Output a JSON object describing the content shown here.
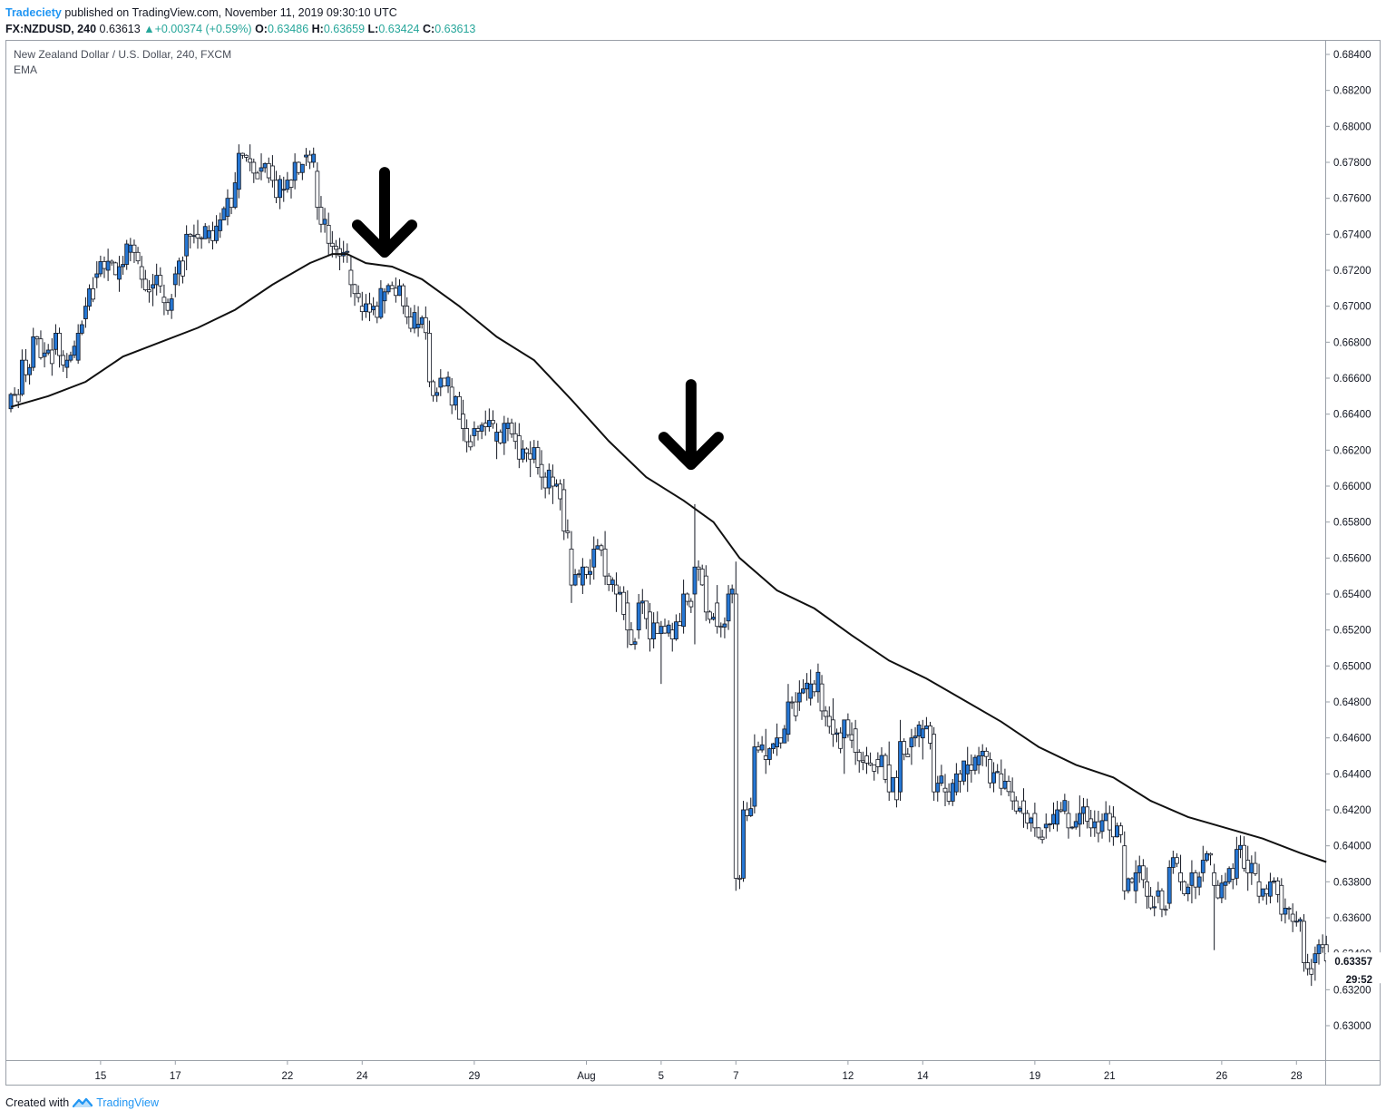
{
  "header": {
    "author": "Tradeciety",
    "published_text": "published on TradingView.com, November 11, 2019 09:30:10 UTC",
    "symbol": "FX:NZDUSD, 240",
    "last": "0.63613",
    "change": "+0.00374 (+0.59%)",
    "o_label": "O:",
    "o_value": "0.63486",
    "h_label": "H:",
    "h_value": "0.63659",
    "l_label": "L:",
    "l_value": "0.63424",
    "c_label": "C:",
    "c_value": "0.63613"
  },
  "legend": {
    "title": "New Zealand Dollar / U.S. Dollar, 240, FXCM",
    "indicator": "EMA"
  },
  "footer": {
    "created_with": "Created with",
    "brand": "TradingView"
  },
  "price_tag": {
    "price": "0.63357",
    "countdown": "29:52"
  },
  "colors": {
    "up_body": "#2677d4",
    "down_body": "#ffffff",
    "wick": "#131722",
    "ema": "#111111",
    "arrow": "#000000",
    "author": "#2196f3",
    "change_up": "#26a69a"
  },
  "icons": [
    "up-triangle-icon",
    "tradingview-logo-icon",
    "down-arrow-icon"
  ],
  "chart_data": {
    "type": "candlestick",
    "title": "New Zealand Dollar / U.S. Dollar, 240, FXCM",
    "y_axis_position": "right",
    "ylim": [
      0.6284,
      0.6851
    ],
    "y_ticks": [
      0.684,
      0.682,
      0.68,
      0.678,
      0.676,
      0.674,
      0.672,
      0.67,
      0.668,
      0.666,
      0.664,
      0.662,
      0.66,
      0.658,
      0.656,
      0.654,
      0.652,
      0.65,
      0.648,
      0.646,
      0.644,
      0.642,
      0.64,
      0.638,
      0.636,
      0.634,
      0.632,
      0.63
    ],
    "y_tick_labels": [
      "0.68400",
      "0.68200",
      "0.68000",
      "0.67800",
      "0.67600",
      "0.67400",
      "0.67200",
      "0.67000",
      "0.66800",
      "0.66600",
      "0.66400",
      "0.66200",
      "0.66000",
      "0.65800",
      "0.65600",
      "0.65400",
      "0.65200",
      "0.65000",
      "0.64800",
      "0.64600",
      "0.64400",
      "0.64200",
      "0.64000",
      "0.63800",
      "0.63600",
      "0.63400",
      "0.63200",
      "0.63000"
    ],
    "x_ticks": [
      {
        "label": "15",
        "index": 24
      },
      {
        "label": "17",
        "index": 44
      },
      {
        "label": "22",
        "index": 74
      },
      {
        "label": "24",
        "index": 94
      },
      {
        "label": "29",
        "index": 124
      },
      {
        "label": "Aug",
        "index": 154
      },
      {
        "label": "5",
        "index": 174
      },
      {
        "label": "7",
        "index": 194
      },
      {
        "label": "12",
        "index": 224
      },
      {
        "label": "14",
        "index": 244
      },
      {
        "label": "19",
        "index": 274
      },
      {
        "label": "21",
        "index": 294
      },
      {
        "label": "26",
        "index": 324
      },
      {
        "label": "28",
        "index": 344
      }
    ],
    "anchors": [
      [
        0,
        0.6643,
        0.6652,
        0.6641,
        0.6651
      ],
      [
        3,
        0.6651,
        0.6676,
        0.665,
        0.667
      ],
      [
        6,
        0.6666,
        0.6688,
        0.6664,
        0.6683
      ],
      [
        9,
        0.6672,
        0.668,
        0.6666,
        0.6674
      ],
      [
        12,
        0.6676,
        0.669,
        0.6673,
        0.6685
      ],
      [
        15,
        0.6666,
        0.6674,
        0.666,
        0.667
      ],
      [
        18,
        0.667,
        0.669,
        0.6668,
        0.6685
      ],
      [
        20,
        0.6693,
        0.6705,
        0.6688,
        0.67
      ],
      [
        23,
        0.6716,
        0.6725,
        0.671,
        0.6718
      ],
      [
        26,
        0.672,
        0.6732,
        0.6714,
        0.6725
      ],
      [
        29,
        0.6715,
        0.6728,
        0.6708,
        0.6722
      ],
      [
        32,
        0.673,
        0.6738,
        0.6725,
        0.6734
      ],
      [
        35,
        0.6722,
        0.6728,
        0.671,
        0.6715
      ],
      [
        38,
        0.671,
        0.6718,
        0.67,
        0.6712
      ],
      [
        41,
        0.6705,
        0.6712,
        0.6695,
        0.6702
      ],
      [
        44,
        0.6712,
        0.6722,
        0.6705,
        0.6718
      ],
      [
        47,
        0.6728,
        0.6745,
        0.672,
        0.674
      ],
      [
        50,
        0.674,
        0.6748,
        0.6732,
        0.6738
      ],
      [
        53,
        0.6738,
        0.6745,
        0.6735,
        0.6742
      ],
      [
        56,
        0.6742,
        0.6752,
        0.6738,
        0.6748
      ],
      [
        58,
        0.675,
        0.6765,
        0.6745,
        0.676
      ],
      [
        61,
        0.6765,
        0.679,
        0.676,
        0.6785
      ],
      [
        64,
        0.6782,
        0.679,
        0.6775,
        0.678
      ],
      [
        67,
        0.6775,
        0.6785,
        0.677,
        0.6777
      ],
      [
        70,
        0.6778,
        0.6784,
        0.6766,
        0.677
      ],
      [
        73,
        0.6765,
        0.6772,
        0.6758,
        0.6765
      ],
      [
        76,
        0.677,
        0.6785,
        0.6765,
        0.678
      ],
      [
        79,
        0.6783,
        0.6788,
        0.6778,
        0.6784
      ],
      [
        82,
        0.6775,
        0.678,
        0.6748,
        0.6755
      ],
      [
        85,
        0.6745,
        0.6752,
        0.6728,
        0.6735
      ],
      [
        88,
        0.6732,
        0.6738,
        0.672,
        0.6728
      ],
      [
        91,
        0.672,
        0.6728,
        0.6705,
        0.6712
      ],
      [
        94,
        0.67,
        0.6708,
        0.6692,
        0.6697
      ],
      [
        97,
        0.6698,
        0.6705,
        0.6695,
        0.67
      ],
      [
        100,
        0.6703,
        0.671,
        0.6696,
        0.6708
      ],
      [
        103,
        0.671,
        0.6716,
        0.6702,
        0.6706
      ],
      [
        106,
        0.67,
        0.6705,
        0.669,
        0.6694
      ],
      [
        109,
        0.6688,
        0.67,
        0.6683,
        0.669
      ],
      [
        112,
        0.6685,
        0.6692,
        0.6655,
        0.6658
      ],
      [
        115,
        0.6655,
        0.6665,
        0.665,
        0.666
      ],
      [
        118,
        0.6655,
        0.666,
        0.664,
        0.6645
      ],
      [
        121,
        0.664,
        0.6648,
        0.6625,
        0.6632
      ],
      [
        124,
        0.6628,
        0.6636,
        0.6622,
        0.6632
      ],
      [
        127,
        0.6635,
        0.6642,
        0.6628,
        0.6633
      ],
      [
        130,
        0.6625,
        0.6635,
        0.6615,
        0.663
      ],
      [
        133,
        0.6632,
        0.6638,
        0.6625,
        0.6635
      ],
      [
        136,
        0.6628,
        0.6635,
        0.661,
        0.6615
      ],
      [
        139,
        0.6618,
        0.6625,
        0.6605,
        0.6615
      ],
      [
        142,
        0.6612,
        0.662,
        0.6598,
        0.6605
      ],
      [
        145,
        0.6605,
        0.6612,
        0.659,
        0.66
      ],
      [
        148,
        0.6598,
        0.6604,
        0.657,
        0.6575
      ],
      [
        150,
        0.6565,
        0.6575,
        0.6535,
        0.6545
      ],
      [
        153,
        0.6545,
        0.656,
        0.654,
        0.6555
      ],
      [
        156,
        0.6555,
        0.6572,
        0.6548,
        0.6565
      ],
      [
        159,
        0.6565,
        0.6575,
        0.6545,
        0.655
      ],
      [
        162,
        0.6545,
        0.6552,
        0.653,
        0.654
      ],
      [
        165,
        0.6535,
        0.6542,
        0.651,
        0.652
      ],
      [
        168,
        0.652,
        0.654,
        0.6515,
        0.6535
      ],
      [
        171,
        0.653,
        0.6535,
        0.6508,
        0.6515
      ],
      [
        174,
        0.6518,
        0.6525,
        0.649,
        0.6522
      ],
      [
        177,
        0.652,
        0.6524,
        0.6508,
        0.6515
      ],
      [
        180,
        0.6522,
        0.6548,
        0.6518,
        0.654
      ],
      [
        183,
        0.654,
        0.659,
        0.6512,
        0.6555
      ],
      [
        186,
        0.655,
        0.6556,
        0.6525,
        0.653
      ],
      [
        189,
        0.6535,
        0.6545,
        0.6518,
        0.6522
      ],
      [
        192,
        0.6525,
        0.6545,
        0.652,
        0.654
      ],
      [
        194,
        0.654,
        0.6558,
        0.6375,
        0.6382
      ],
      [
        196,
        0.6382,
        0.6425,
        0.638,
        0.642
      ],
      [
        199,
        0.6422,
        0.6462,
        0.6418,
        0.6455
      ],
      [
        202,
        0.645,
        0.6465,
        0.644,
        0.6448
      ],
      [
        205,
        0.6455,
        0.6468,
        0.645,
        0.646
      ],
      [
        208,
        0.6462,
        0.649,
        0.6458,
        0.648
      ],
      [
        211,
        0.648,
        0.6492,
        0.6475,
        0.6485
      ],
      [
        214,
        0.6482,
        0.6498,
        0.6478,
        0.649
      ],
      [
        217,
        0.649,
        0.6495,
        0.647,
        0.6475
      ],
      [
        220,
        0.647,
        0.6482,
        0.6455,
        0.6462
      ],
      [
        223,
        0.646,
        0.647,
        0.644,
        0.647
      ],
      [
        226,
        0.6465,
        0.647,
        0.6445,
        0.6452
      ],
      [
        229,
        0.645,
        0.6455,
        0.644,
        0.6446
      ],
      [
        232,
        0.6448,
        0.6452,
        0.644,
        0.6444
      ],
      [
        235,
        0.6445,
        0.6458,
        0.6425,
        0.643
      ],
      [
        238,
        0.643,
        0.647,
        0.6425,
        0.6458
      ],
      [
        241,
        0.6455,
        0.6465,
        0.6445,
        0.646
      ],
      [
        244,
        0.646,
        0.647,
        0.6448,
        0.6465
      ],
      [
        247,
        0.6462,
        0.6466,
        0.6425,
        0.643
      ],
      [
        250,
        0.6432,
        0.644,
        0.6422,
        0.643
      ],
      [
        253,
        0.643,
        0.6446,
        0.6428,
        0.644
      ],
      [
        256,
        0.644,
        0.6455,
        0.643,
        0.6445
      ],
      [
        259,
        0.6445,
        0.6455,
        0.644,
        0.645
      ],
      [
        262,
        0.6448,
        0.6452,
        0.6432,
        0.6435
      ],
      [
        265,
        0.644,
        0.6448,
        0.6428,
        0.6432
      ],
      [
        268,
        0.643,
        0.6438,
        0.642,
        0.6425
      ],
      [
        271,
        0.6425,
        0.6432,
        0.641,
        0.6418
      ],
      [
        274,
        0.6418,
        0.6424,
        0.6405,
        0.641
      ],
      [
        277,
        0.641,
        0.6418,
        0.6404,
        0.6412
      ],
      [
        280,
        0.6412,
        0.6425,
        0.6408,
        0.642
      ],
      [
        283,
        0.6418,
        0.6425,
        0.6404,
        0.641
      ],
      [
        286,
        0.6412,
        0.6428,
        0.6405,
        0.6418
      ],
      [
        289,
        0.6415,
        0.642,
        0.6405,
        0.641
      ],
      [
        292,
        0.6408,
        0.6418,
        0.6404,
        0.6414
      ],
      [
        295,
        0.6416,
        0.6422,
        0.64,
        0.6405
      ],
      [
        298,
        0.64,
        0.6408,
        0.637,
        0.6375
      ],
      [
        301,
        0.6375,
        0.6392,
        0.6368,
        0.6385
      ],
      [
        304,
        0.638,
        0.6388,
        0.6365,
        0.6372
      ],
      [
        307,
        0.6372,
        0.638,
        0.6368,
        0.6375
      ],
      [
        310,
        0.6368,
        0.6392,
        0.6365,
        0.6388
      ],
      [
        313,
        0.6385,
        0.6395,
        0.6375,
        0.638
      ],
      [
        316,
        0.6378,
        0.6392,
        0.6368,
        0.6385
      ],
      [
        319,
        0.6385,
        0.64,
        0.638,
        0.6392
      ],
      [
        322,
        0.6385,
        0.639,
        0.6342,
        0.6378
      ],
      [
        325,
        0.6378,
        0.6385,
        0.637,
        0.638
      ],
      [
        328,
        0.6382,
        0.6405,
        0.6378,
        0.6398
      ],
      [
        331,
        0.6392,
        0.64,
        0.6375,
        0.6385
      ],
      [
        334,
        0.638,
        0.639,
        0.6368,
        0.6372
      ],
      [
        337,
        0.6372,
        0.6385,
        0.6368,
        0.638
      ],
      [
        340,
        0.6378,
        0.6382,
        0.6358,
        0.6362
      ],
      [
        343,
        0.6362,
        0.6368,
        0.6352,
        0.6358
      ],
      [
        346,
        0.6358,
        0.6362,
        0.633,
        0.6335
      ],
      [
        349,
        0.6335,
        0.6344,
        0.6325,
        0.634
      ],
      [
        350,
        0.634,
        0.6348,
        0.6334,
        0.6345
      ],
      [
        352,
        0.6345,
        0.635,
        0.6335,
        0.6336
      ]
    ],
    "ema": {
      "label": "EMA",
      "points": [
        [
          0,
          0.6644
        ],
        [
          10,
          0.665
        ],
        [
          20,
          0.6658
        ],
        [
          30,
          0.6672
        ],
        [
          40,
          0.668
        ],
        [
          50,
          0.6688
        ],
        [
          60,
          0.6698
        ],
        [
          70,
          0.6712
        ],
        [
          80,
          0.6724
        ],
        [
          86,
          0.6729
        ],
        [
          90,
          0.6729
        ],
        [
          95,
          0.6724
        ],
        [
          102,
          0.6722
        ],
        [
          110,
          0.6715
        ],
        [
          120,
          0.67
        ],
        [
          130,
          0.6683
        ],
        [
          140,
          0.667
        ],
        [
          150,
          0.6648
        ],
        [
          160,
          0.6625
        ],
        [
          170,
          0.6605
        ],
        [
          180,
          0.6592
        ],
        [
          188,
          0.658
        ],
        [
          195,
          0.656
        ],
        [
          205,
          0.6542
        ],
        [
          215,
          0.6532
        ],
        [
          225,
          0.6517
        ],
        [
          235,
          0.6503
        ],
        [
          245,
          0.6493
        ],
        [
          255,
          0.6481
        ],
        [
          265,
          0.6469
        ],
        [
          275,
          0.6455
        ],
        [
          285,
          0.6445
        ],
        [
          295,
          0.6438
        ],
        [
          305,
          0.6425
        ],
        [
          315,
          0.6416
        ],
        [
          325,
          0.641
        ],
        [
          335,
          0.6404
        ],
        [
          345,
          0.6396
        ],
        [
          352,
          0.6391
        ]
      ]
    },
    "annotations": [
      {
        "type": "down-arrow",
        "index": 100,
        "tip_price": 0.6728
      },
      {
        "type": "down-arrow",
        "index": 182,
        "tip_price": 0.661
      }
    ],
    "last_price": 0.63357
  }
}
